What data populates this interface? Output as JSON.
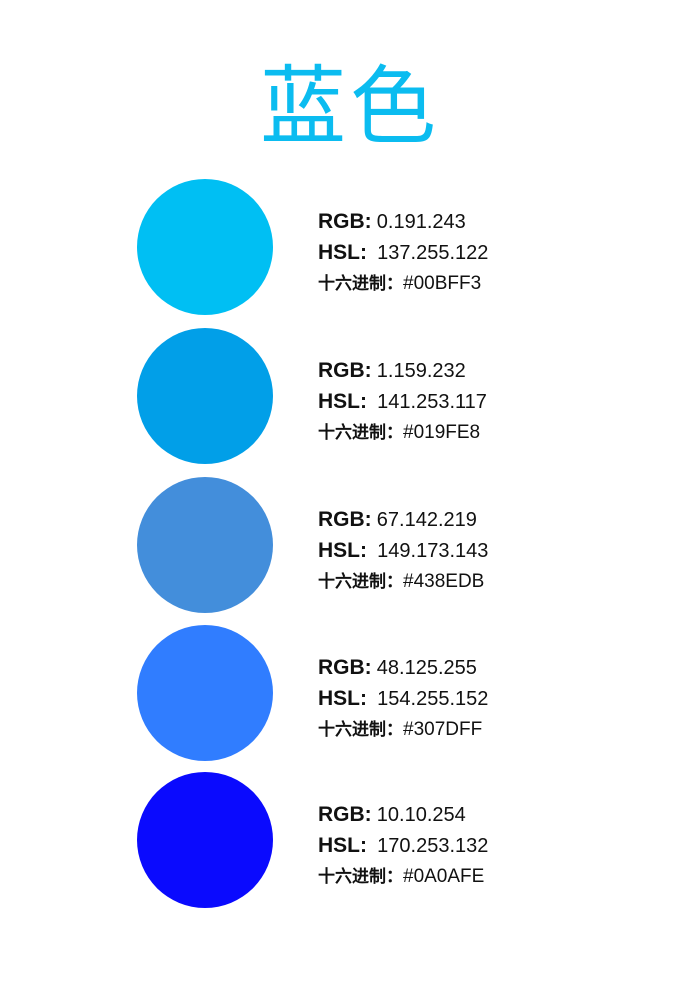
{
  "title": "蓝色",
  "labels": {
    "rgb": "RGB:",
    "hsl": "HSL:",
    "hex": "十六进制："
  },
  "swatches": [
    {
      "color": "#00BFF3",
      "rgb": "0.191.243",
      "hsl": "137.255.122",
      "hex": "#00BFF3"
    },
    {
      "color": "#019FE8",
      "rgb": "1.159.232",
      "hsl": "141.253.117",
      "hex": "#019FE8"
    },
    {
      "color": "#438EDB",
      "rgb": "67.142.219",
      "hsl": "149.173.143",
      "hex": "#438EDB"
    },
    {
      "color": "#307DFF",
      "rgb": "48.125.255",
      "hsl": "154.255.152",
      "hex": "#307DFF"
    },
    {
      "color": "#0A0AFE",
      "rgb": "10.10.254",
      "hsl": "170.253.132",
      "hex": "#0A0AFE"
    }
  ]
}
